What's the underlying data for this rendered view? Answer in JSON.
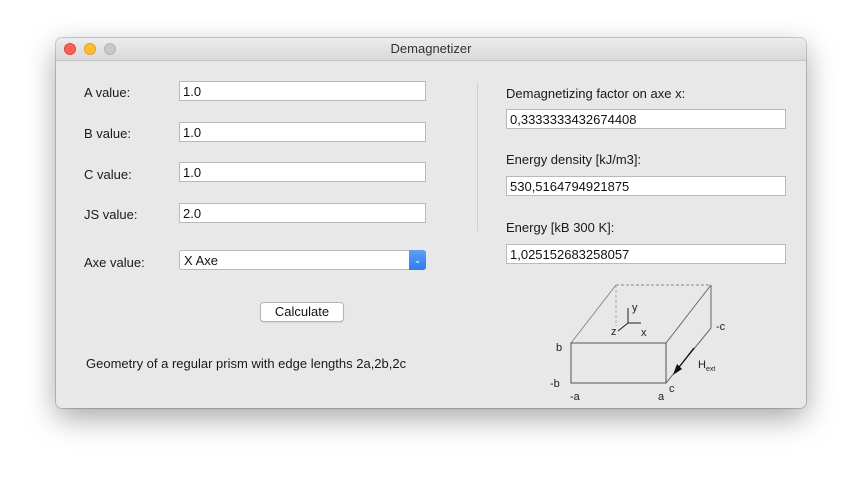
{
  "window": {
    "title": "Demagnetizer"
  },
  "inputs": {
    "a": {
      "label": "A value:",
      "value": "1.0"
    },
    "b": {
      "label": "B value:",
      "value": "1.0"
    },
    "c": {
      "label": "C value:",
      "value": "1.0"
    },
    "js": {
      "label": "JS value:",
      "value": "2.0"
    },
    "axe": {
      "label": "Axe value:",
      "selected": "X Axe"
    }
  },
  "calculate_label": "Calculate",
  "geometry_caption": "Geometry of a regular prism with edge lengths 2a,2b,2c",
  "results": {
    "demag": {
      "label": "Demagnetizing factor on axe x:",
      "value": "0,3333333432674408"
    },
    "density": {
      "label": "Energy density [kJ/m3]:",
      "value": "530,5164794921875"
    },
    "energy": {
      "label": "Energy [kB 300 K]:",
      "value": "1,025152683258057"
    }
  },
  "diagram": {
    "y": "y",
    "z": "z",
    "x": "x",
    "b_top": "b",
    "b_low": "-b",
    "a_left": "-a",
    "a_right": "a",
    "c": "c",
    "c_neg": "-c",
    "h": "H",
    "h_sub": "ext"
  },
  "colors": {
    "close": "#fe5f57",
    "minimize": "#febc2e",
    "select_accent": "#2f7cf1"
  }
}
